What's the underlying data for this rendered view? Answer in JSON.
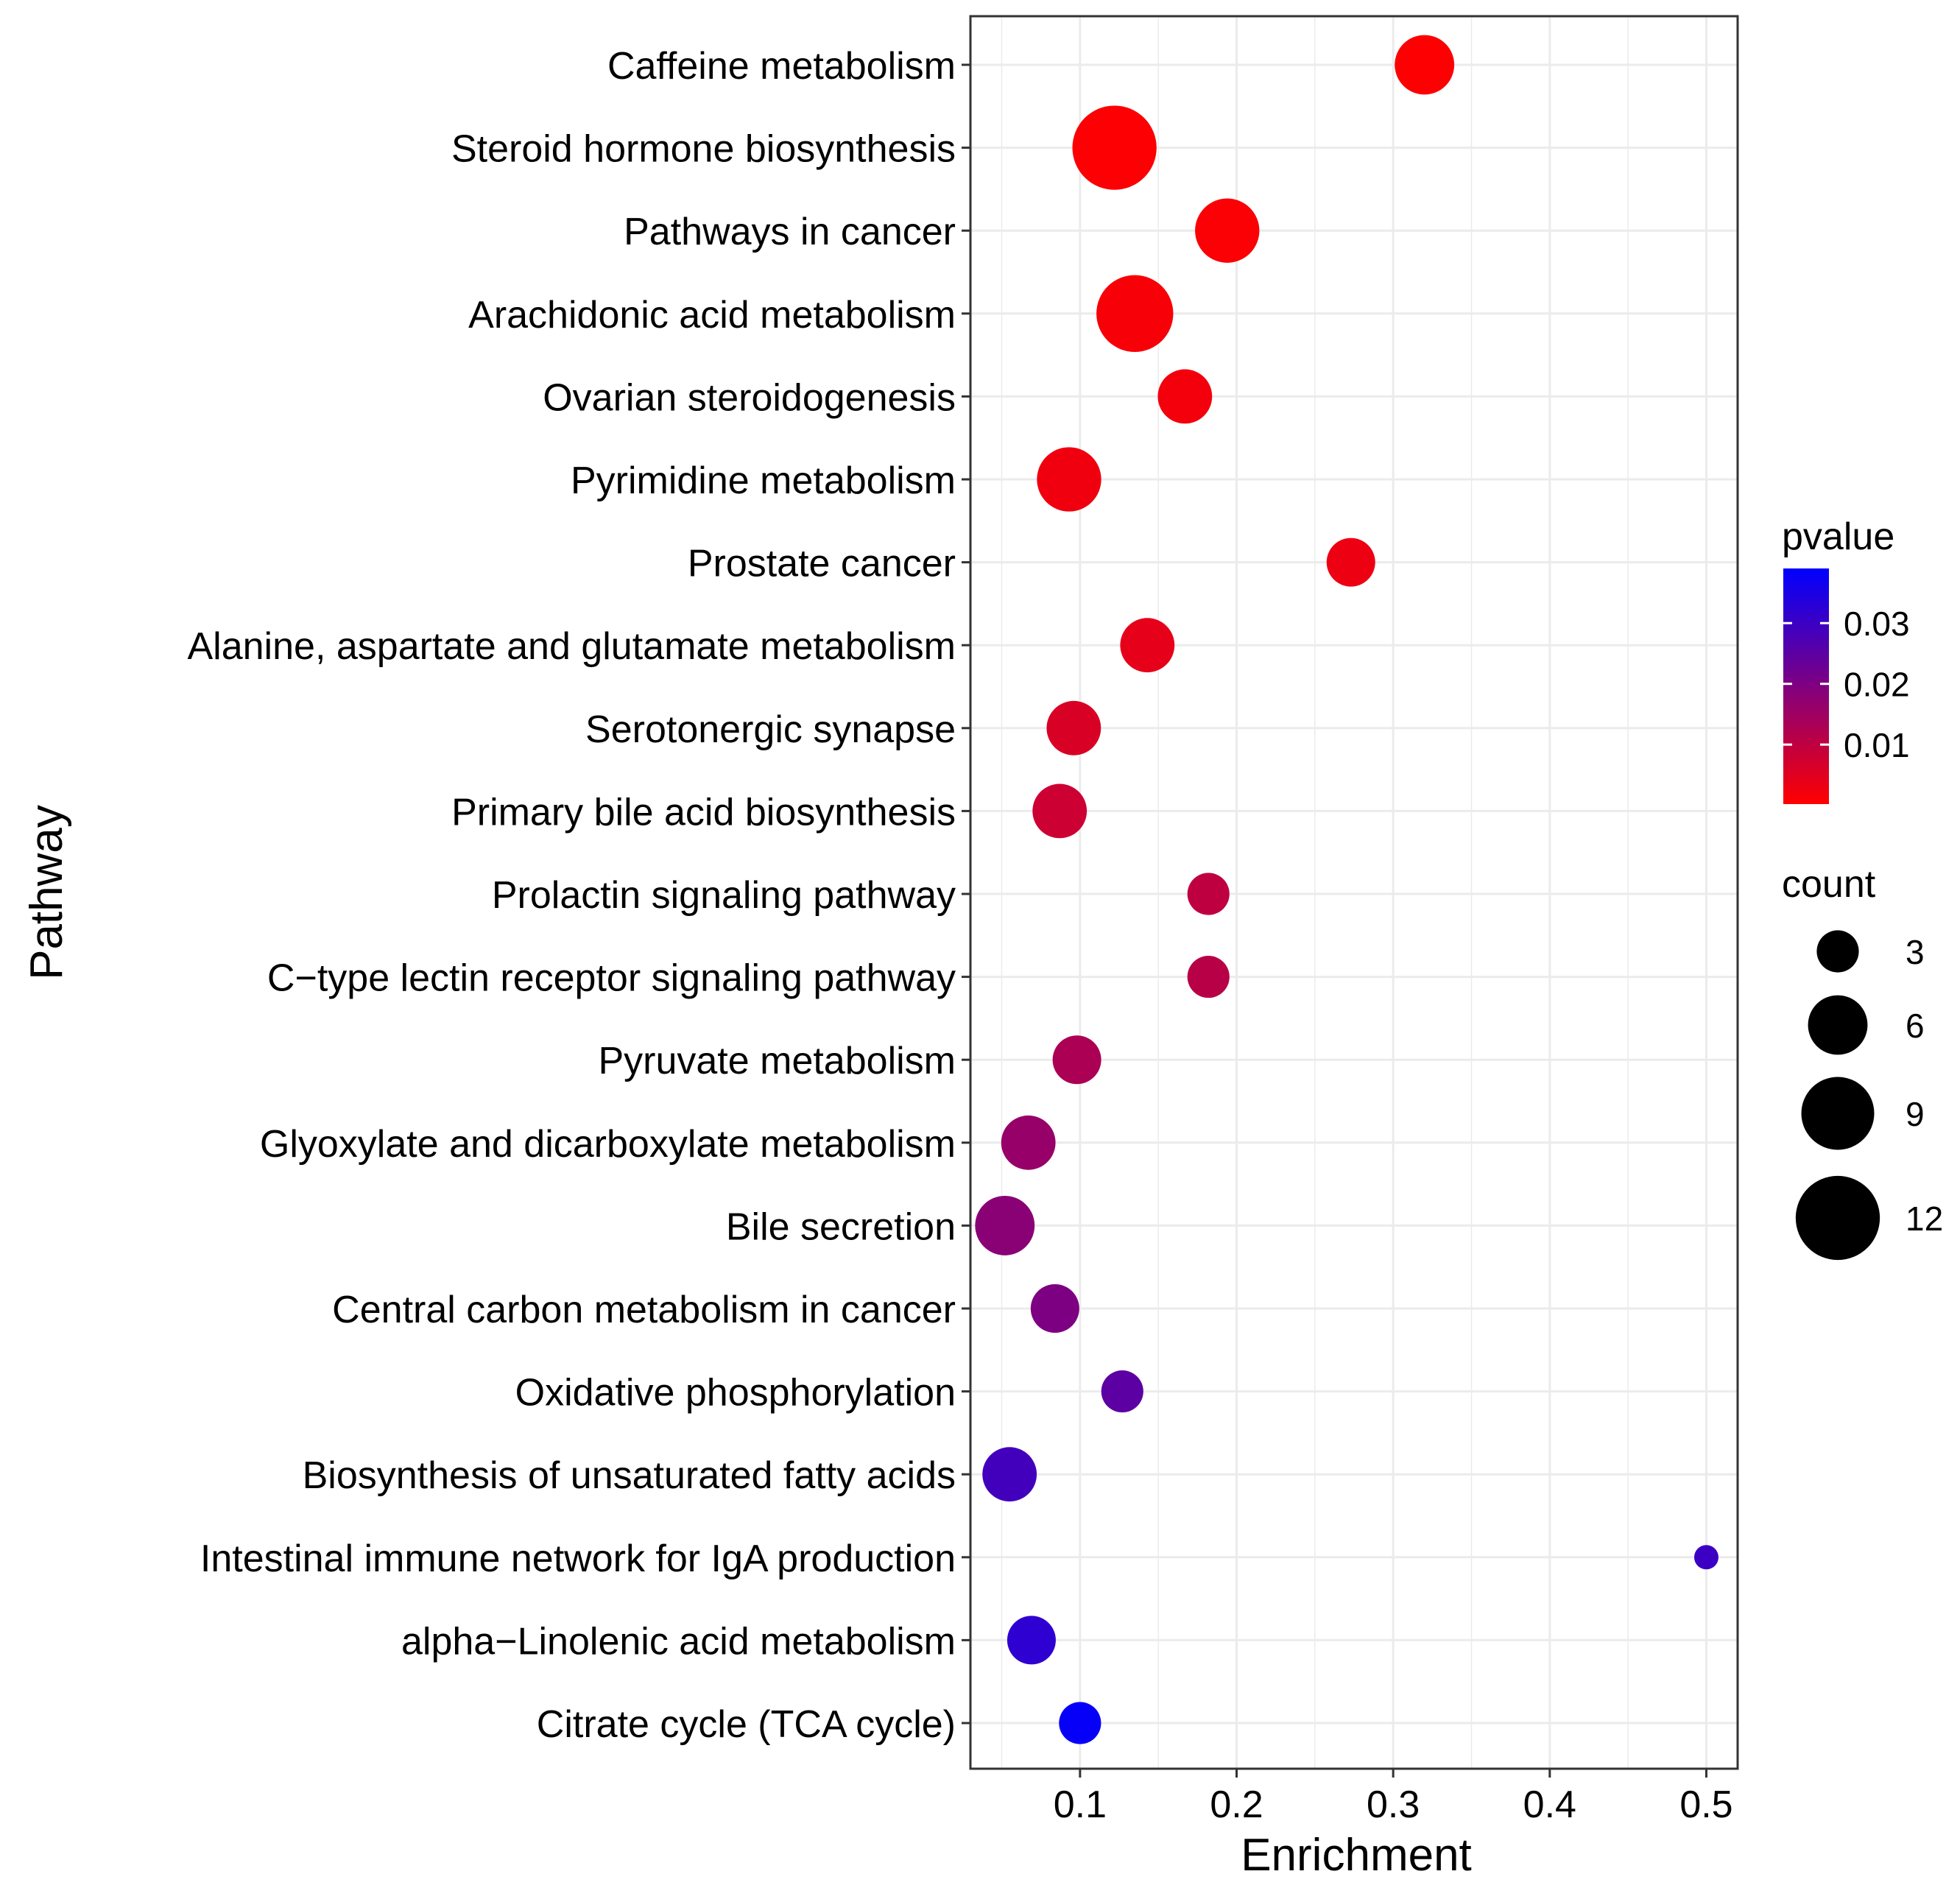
{
  "chart_data": {
    "type": "scatter",
    "subtype": "bubble",
    "xlabel": "Enrichment",
    "ylabel": "Pathway",
    "xlim": [
      0.03,
      0.52
    ],
    "xticks": [
      0.1,
      0.2,
      0.3,
      0.4,
      0.5
    ],
    "xtick_labels": [
      "0.1",
      "0.2",
      "0.3",
      "0.4",
      "0.5"
    ],
    "grid": true,
    "points": [
      {
        "pathway": "Caffeine metabolism",
        "enrichment": 0.32,
        "count": 6,
        "pvalue": 0.0005
      },
      {
        "pathway": "Steroid hormone biosynthesis",
        "enrichment": 0.122,
        "count": 12,
        "pvalue": 0.0006
      },
      {
        "pathway": "Pathways in cancer",
        "enrichment": 0.194,
        "count": 7,
        "pvalue": 0.0008
      },
      {
        "pathway": "Arachidonic acid metabolism",
        "enrichment": 0.135,
        "count": 10,
        "pvalue": 0.0012
      },
      {
        "pathway": "Ovarian steroidogenesis",
        "enrichment": 0.167,
        "count": 5,
        "pvalue": 0.002
      },
      {
        "pathway": "Pyrimidine metabolism",
        "enrichment": 0.093,
        "count": 7,
        "pvalue": 0.0025
      },
      {
        "pathway": "Prostate cancer",
        "enrichment": 0.273,
        "count": 4,
        "pvalue": 0.003
      },
      {
        "pathway": "Alanine, aspartate and glutamate metabolism",
        "enrichment": 0.143,
        "count": 5,
        "pvalue": 0.004
      },
      {
        "pathway": "Serotonergic synapse",
        "enrichment": 0.096,
        "count": 5,
        "pvalue": 0.006
      },
      {
        "pathway": "Primary bile acid biosynthesis",
        "enrichment": 0.087,
        "count": 5,
        "pvalue": 0.008
      },
      {
        "pathway": "Prolactin signaling pathway",
        "enrichment": 0.182,
        "count": 3,
        "pvalue": 0.01
      },
      {
        "pathway": "C−type lectin receptor signaling pathway",
        "enrichment": 0.182,
        "count": 3,
        "pvalue": 0.011
      },
      {
        "pathway": "Pyruvate metabolism",
        "enrichment": 0.098,
        "count": 4,
        "pvalue": 0.013
      },
      {
        "pathway": "Glyoxylate and dicarboxylate metabolism",
        "enrichment": 0.067,
        "count": 5,
        "pvalue": 0.016
      },
      {
        "pathway": "Bile secretion",
        "enrichment": 0.052,
        "count": 6,
        "pvalue": 0.018
      },
      {
        "pathway": "Central carbon metabolism in cancer",
        "enrichment": 0.084,
        "count": 4,
        "pvalue": 0.02
      },
      {
        "pathway": "Oxidative phosphorylation",
        "enrichment": 0.127,
        "count": 3,
        "pvalue": 0.025
      },
      {
        "pathway": "Biosynthesis of unsaturated fatty acids",
        "enrichment": 0.055,
        "count": 5,
        "pvalue": 0.029
      },
      {
        "pathway": "Intestinal immune network for IgA production",
        "enrichment": 0.5,
        "count": 1,
        "pvalue": 0.03
      },
      {
        "pathway": "alpha−Linolenic acid metabolism",
        "enrichment": 0.069,
        "count": 4,
        "pvalue": 0.032
      },
      {
        "pathway": "Citrate cycle (TCA cycle)",
        "enrichment": 0.1,
        "count": 3,
        "pvalue": 0.038
      }
    ],
    "color_legend": {
      "title": "pvalue",
      "range": [
        0.0002,
        0.039
      ],
      "low_color": "#ff0000",
      "high_color": "#0000ff",
      "ticks": [
        0.01,
        0.02,
        0.03
      ],
      "tick_labels": [
        "0.01",
        "0.02",
        "0.03"
      ]
    },
    "size_legend": {
      "title": "count",
      "values": [
        3,
        6,
        9,
        12
      ],
      "labels": [
        "3",
        "6",
        "9",
        "12"
      ]
    },
    "colors": {
      "grid": "#ebebeb",
      "panel_border": "#333333",
      "axis_ticks": "#333333"
    }
  }
}
